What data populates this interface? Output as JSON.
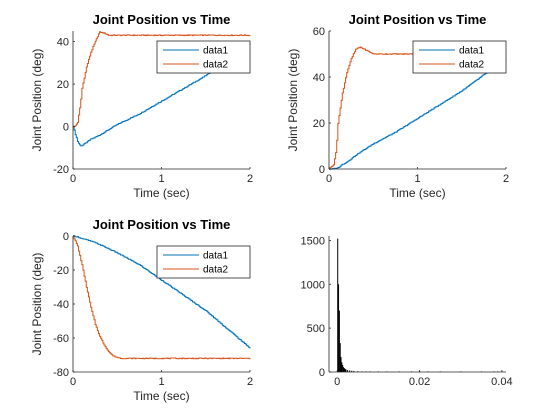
{
  "chart_data": [
    {
      "type": "line",
      "title": "Joint Position vs Time",
      "xlabel": "Time (sec)",
      "ylabel": "Joint Position (deg)",
      "xlim": [
        0,
        2
      ],
      "ylim": [
        -20,
        45
      ],
      "xticks": [
        0,
        1,
        2
      ],
      "yticks": [
        -20,
        0,
        20,
        40
      ],
      "legend": "top-right",
      "series": [
        {
          "name": "data1",
          "color": "#0072BD",
          "x": [
            0,
            0.02,
            0.05,
            0.08,
            0.1,
            0.15,
            0.2,
            0.3,
            0.5,
            0.75,
            1.0,
            1.25,
            1.5,
            1.75,
            2.0
          ],
          "y": [
            0,
            -3,
            -7,
            -9,
            -9,
            -7.5,
            -6,
            -4,
            1,
            6,
            12,
            18,
            24,
            32,
            39
          ]
        },
        {
          "name": "data2",
          "color": "#D95319",
          "x": [
            0,
            0.02,
            0.05,
            0.08,
            0.1,
            0.15,
            0.2,
            0.25,
            0.28,
            0.3,
            0.35,
            0.4,
            0.6,
            1.0,
            1.5,
            2.0
          ],
          "y": [
            0,
            0,
            2,
            10,
            18,
            28,
            35,
            40,
            43,
            44.5,
            44,
            43,
            43,
            43,
            43,
            43
          ]
        }
      ]
    },
    {
      "type": "line",
      "title": "Joint Position vs Time",
      "xlabel": "Time (sec)",
      "ylabel": "Joint Position (deg)",
      "xlim": [
        0,
        2
      ],
      "ylim": [
        0,
        60
      ],
      "xticks": [
        0,
        1,
        2
      ],
      "yticks": [
        0,
        20,
        40,
        60
      ],
      "legend": "top-right",
      "series": [
        {
          "name": "data1",
          "color": "#0072BD",
          "x": [
            0,
            0.05,
            0.1,
            0.15,
            0.2,
            0.3,
            0.5,
            0.75,
            1.0,
            1.25,
            1.5,
            1.75,
            2.0
          ],
          "y": [
            0,
            0,
            0.5,
            2,
            3,
            6,
            11,
            16,
            22,
            28,
            34,
            41,
            48
          ]
        },
        {
          "name": "data2",
          "color": "#D95319",
          "x": [
            0,
            0.05,
            0.08,
            0.1,
            0.15,
            0.2,
            0.25,
            0.3,
            0.35,
            0.4,
            0.5,
            1.0,
            1.5,
            2.0
          ],
          "y": [
            0,
            2,
            8,
            20,
            33,
            42,
            48,
            52,
            53,
            52,
            50,
            50,
            50,
            50
          ]
        }
      ]
    },
    {
      "type": "line",
      "title": "Joint Position vs Time",
      "xlabel": "Time (sec)",
      "ylabel": "Joint Position (deg)",
      "xlim": [
        0,
        2
      ],
      "ylim": [
        -80,
        0
      ],
      "xticks": [
        0,
        1,
        2
      ],
      "yticks": [
        -80,
        -60,
        -40,
        -20,
        0
      ],
      "legend": "top-right",
      "series": [
        {
          "name": "data1",
          "color": "#0072BD",
          "x": [
            0,
            0.05,
            0.1,
            0.2,
            0.3,
            0.5,
            0.75,
            1.0,
            1.25,
            1.5,
            1.75,
            2.0
          ],
          "y": [
            0,
            -0.5,
            -1.5,
            -3,
            -5,
            -10,
            -17,
            -26,
            -35,
            -44,
            -55,
            -66
          ]
        },
        {
          "name": "data2",
          "color": "#D95319",
          "x": [
            0,
            0.05,
            0.1,
            0.15,
            0.2,
            0.25,
            0.3,
            0.35,
            0.4,
            0.45,
            0.5,
            0.55,
            1.0,
            1.5,
            2.0
          ],
          "y": [
            0,
            -6,
            -17,
            -30,
            -42,
            -52,
            -59,
            -64,
            -68,
            -70.5,
            -71.5,
            -72,
            -72,
            -72,
            -72
          ]
        }
      ]
    },
    {
      "type": "bar",
      "title": "",
      "xlabel": "",
      "ylabel": "",
      "xlim": [
        -0.002,
        0.041
      ],
      "ylim": [
        0,
        1550
      ],
      "xticks": [
        0,
        0.02,
        0.04
      ],
      "yticks": [
        0,
        500,
        1000,
        1500
      ],
      "bar_width": 0.0002,
      "color": "#000000",
      "bars": [
        {
          "x": 0.0001,
          "value": 1520
        },
        {
          "x": 0.0003,
          "value": 1000
        },
        {
          "x": 0.0005,
          "value": 700
        },
        {
          "x": 0.0007,
          "value": 330
        },
        {
          "x": 0.0009,
          "value": 170
        },
        {
          "x": 0.0011,
          "value": 110
        },
        {
          "x": 0.0013,
          "value": 80
        },
        {
          "x": 0.0015,
          "value": 55
        },
        {
          "x": 0.0017,
          "value": 45
        },
        {
          "x": 0.0019,
          "value": 35
        },
        {
          "x": 0.0021,
          "value": 30
        },
        {
          "x": 0.0025,
          "value": 22
        },
        {
          "x": 0.003,
          "value": 18
        },
        {
          "x": 0.0035,
          "value": 14
        },
        {
          "x": 0.004,
          "value": 12
        },
        {
          "x": 0.005,
          "value": 9
        },
        {
          "x": 0.006,
          "value": 7
        },
        {
          "x": 0.007,
          "value": 6
        },
        {
          "x": 0.008,
          "value": 5
        },
        {
          "x": 0.01,
          "value": 4
        },
        {
          "x": 0.012,
          "value": 3
        },
        {
          "x": 0.015,
          "value": 3
        },
        {
          "x": 0.018,
          "value": 2
        },
        {
          "x": 0.02,
          "value": 10
        },
        {
          "x": 0.022,
          "value": 2
        },
        {
          "x": 0.025,
          "value": 2
        },
        {
          "x": 0.03,
          "value": 2
        },
        {
          "x": 0.035,
          "value": 2
        },
        {
          "x": 0.038,
          "value": 6
        },
        {
          "x": 0.039,
          "value": 3
        },
        {
          "x": 0.04,
          "value": 6
        }
      ]
    }
  ]
}
